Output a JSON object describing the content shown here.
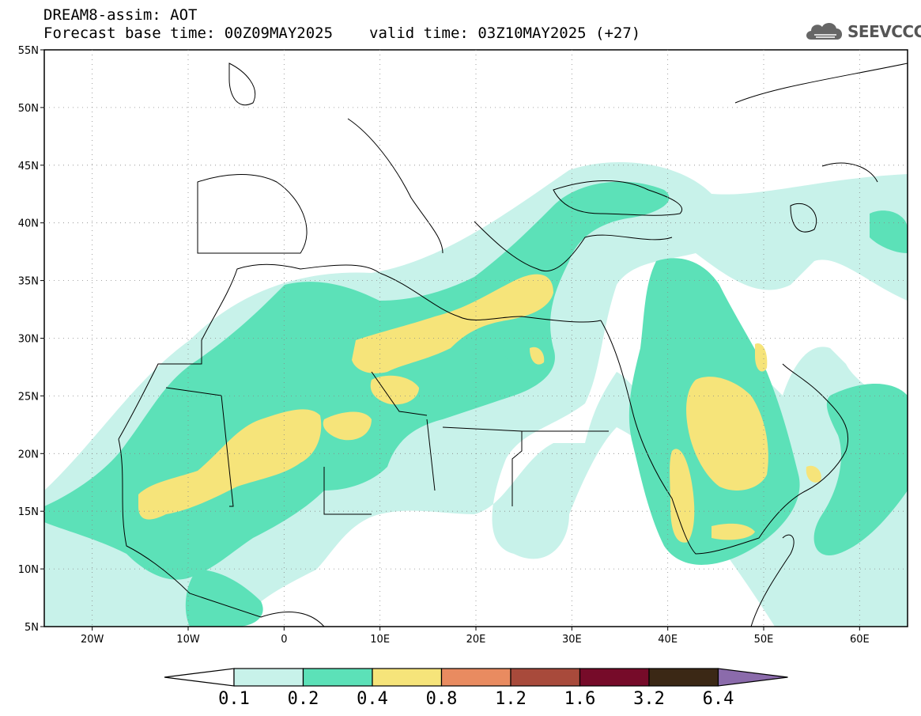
{
  "header": {
    "line1": "DREAM8-assim: AOT",
    "base_time": "Forecast base time: 00Z09MAY2025",
    "valid_time": "valid time: 03Z10MAY2025 (+27)"
  },
  "logo": {
    "text": "SEEVCCC",
    "icon": "cloud-icon"
  },
  "map": {
    "lon_range": [
      -25,
      65
    ],
    "lat_range": [
      5,
      55
    ],
    "lat_ticks": [
      {
        "value": 55,
        "label": "55N"
      },
      {
        "value": 50,
        "label": "50N"
      },
      {
        "value": 45,
        "label": "45N"
      },
      {
        "value": 40,
        "label": "40N"
      },
      {
        "value": 35,
        "label": "35N"
      },
      {
        "value": 30,
        "label": "30N"
      },
      {
        "value": 25,
        "label": "25N"
      },
      {
        "value": 20,
        "label": "20N"
      },
      {
        "value": 15,
        "label": "15N"
      },
      {
        "value": 10,
        "label": "10N"
      },
      {
        "value": 5,
        "label": "5N"
      }
    ],
    "lon_ticks": [
      {
        "value": -20,
        "label": "20W"
      },
      {
        "value": -10,
        "label": "10W"
      },
      {
        "value": 0,
        "label": "0"
      },
      {
        "value": 10,
        "label": "10E"
      },
      {
        "value": 20,
        "label": "20E"
      },
      {
        "value": 30,
        "label": "30E"
      },
      {
        "value": 40,
        "label": "40E"
      },
      {
        "value": 50,
        "label": "50E"
      },
      {
        "value": 60,
        "label": "60E"
      }
    ],
    "grid": "dotted"
  },
  "colorbar": {
    "labels": [
      "0.1",
      "0.2",
      "0.4",
      "0.8",
      "1.2",
      "1.6",
      "3.2",
      "6.4"
    ],
    "colors": [
      "#ffffff",
      "#c8f2ea",
      "#5ce1b8",
      "#f6e47a",
      "#e98b60",
      "#a84a3b",
      "#760b29",
      "#3b2815",
      "#8b6bab"
    ]
  }
}
